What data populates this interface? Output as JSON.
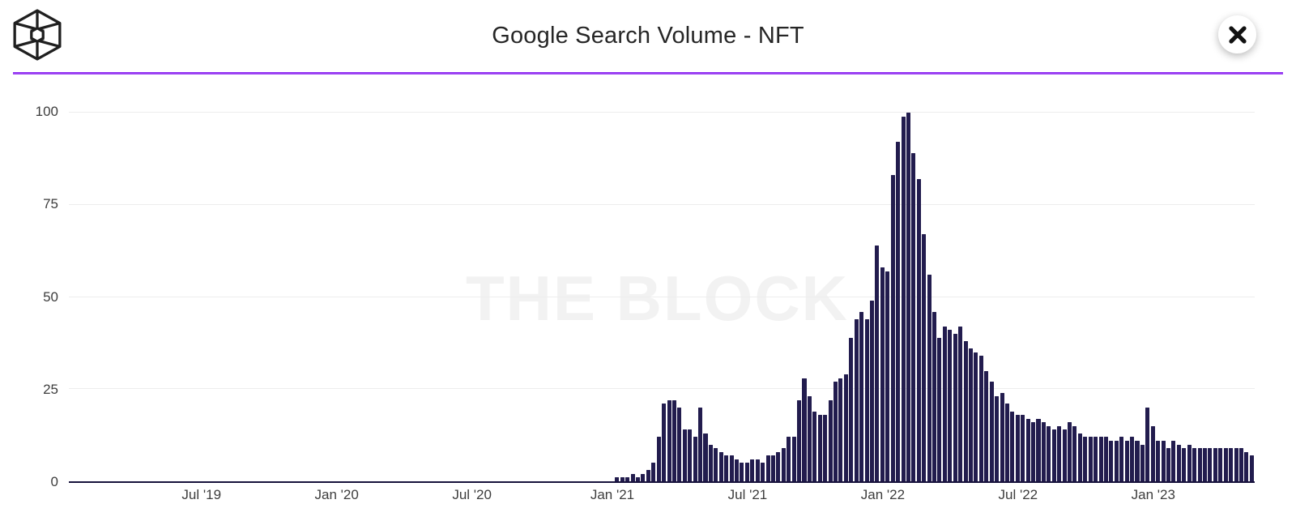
{
  "header": {
    "title": "Google Search Volume - NFT",
    "logo_name": "the-block-cube-logo",
    "close_label": "Close"
  },
  "watermark": "THE BLOCK",
  "colors": {
    "bar": "#221c4e",
    "axis_line": "#17123c",
    "gridline": "#ededed",
    "divider_purple": "#8a1df0",
    "tick_text": "#3d3d3d",
    "title_text": "#262626",
    "watermark_text": "#f2f2f2"
  },
  "chart_data": {
    "type": "bar",
    "title": "Google Search Volume - NFT",
    "frequency": "weekly",
    "ylim": [
      0,
      100
    ],
    "y_ticks": [
      0,
      25,
      50,
      75,
      100
    ],
    "grid": "horizontal",
    "x_ticks": [
      {
        "label": "Jul '19",
        "week": 25
      },
      {
        "label": "Jan '20",
        "week": 51
      },
      {
        "label": "Jul '20",
        "week": 77
      },
      {
        "label": "Jan '21",
        "week": 104
      },
      {
        "label": "Jul '21",
        "week": 130
      },
      {
        "label": "Jan '22",
        "week": 156
      },
      {
        "label": "Jul '22",
        "week": 182
      },
      {
        "label": "Jan '23",
        "week": 208
      }
    ],
    "values": [
      0,
      0,
      0,
      0,
      0,
      0,
      0,
      0,
      0,
      0,
      0,
      0,
      0,
      0,
      0,
      0,
      0,
      0,
      0,
      0,
      0,
      0,
      0,
      0,
      0,
      0,
      0,
      0,
      0,
      0,
      0,
      0,
      0,
      0,
      0,
      0,
      0,
      0,
      0,
      0,
      0,
      0,
      0,
      0,
      0,
      0,
      0,
      0,
      0,
      0,
      0,
      0,
      0,
      0,
      0,
      0,
      0,
      0,
      0,
      0,
      0,
      0,
      0,
      0,
      0,
      0,
      0,
      0,
      0,
      0,
      0,
      0,
      0,
      0,
      0,
      0,
      0,
      0,
      0,
      0,
      0,
      0,
      0,
      0,
      0,
      0,
      0,
      0,
      0,
      0,
      0,
      0,
      0,
      0,
      0,
      0,
      0,
      0,
      0,
      0,
      0,
      0,
      0,
      0,
      0,
      1,
      1,
      1,
      2,
      1,
      2,
      3,
      5,
      12,
      21,
      22,
      22,
      20,
      14,
      14,
      12,
      20,
      13,
      10,
      9,
      8,
      7,
      7,
      6,
      5,
      5,
      6,
      6,
      5,
      7,
      7,
      8,
      9,
      12,
      12,
      22,
      28,
      23,
      19,
      18,
      18,
      22,
      27,
      28,
      29,
      39,
      44,
      46,
      44,
      49,
      64,
      58,
      57,
      83,
      92,
      99,
      100,
      89,
      82,
      67,
      56,
      46,
      39,
      42,
      41,
      40,
      42,
      38,
      36,
      35,
      34,
      30,
      27,
      23,
      24,
      21,
      19,
      18,
      18,
      17,
      16,
      17,
      16,
      15,
      14,
      15,
      14,
      16,
      15,
      13,
      12,
      12,
      12,
      12,
      12,
      11,
      11,
      12,
      11,
      12,
      11,
      10,
      20,
      15,
      11,
      11,
      9,
      11,
      10,
      9,
      10,
      9,
      9,
      9,
      9,
      9,
      9,
      9,
      9,
      9,
      9,
      8,
      7
    ]
  }
}
